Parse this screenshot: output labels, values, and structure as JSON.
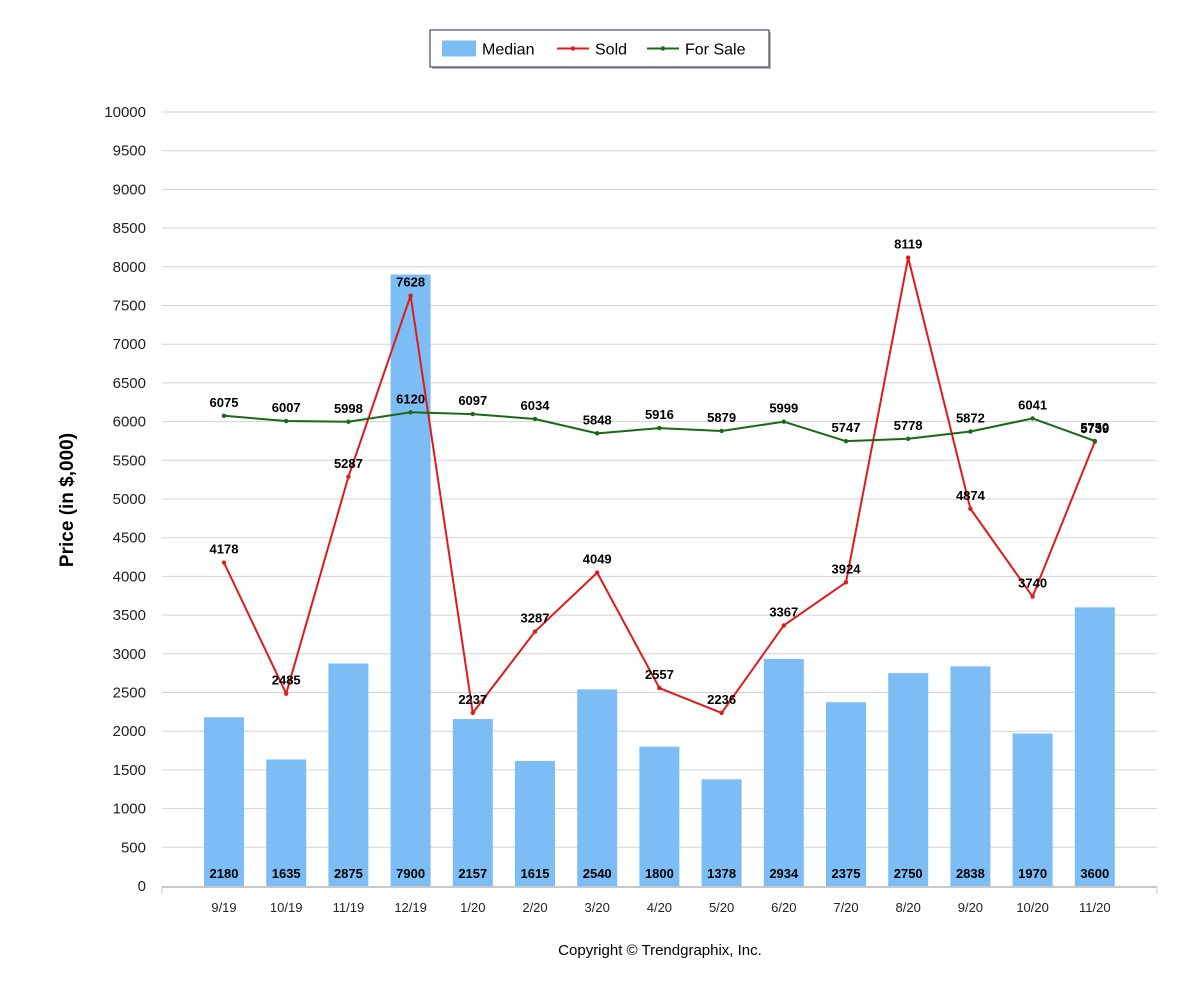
{
  "chart_data": {
    "type": "bar",
    "categories": [
      "9/19",
      "10/19",
      "11/19",
      "12/19",
      "1/20",
      "2/20",
      "3/20",
      "4/20",
      "5/20",
      "6/20",
      "7/20",
      "8/20",
      "9/20",
      "10/20",
      "11/20"
    ],
    "series": [
      {
        "name": "Median",
        "type": "bar",
        "color": "#7dbdf5",
        "values": [
          2180,
          1635,
          2875,
          7900,
          2157,
          1615,
          2540,
          1800,
          1378,
          2934,
          2375,
          2750,
          2838,
          1970,
          3600
        ]
      },
      {
        "name": "Sold",
        "type": "line",
        "color": "#e01a1a",
        "values": [
          4178,
          2485,
          5287,
          7628,
          2237,
          3287,
          4049,
          2557,
          2236,
          3367,
          3924,
          8119,
          4874,
          3740,
          5739
        ]
      },
      {
        "name": "For Sale",
        "type": "line",
        "color": "#176b17",
        "values": [
          6075,
          6007,
          5998,
          6120,
          6097,
          6034,
          5848,
          5916,
          5879,
          5999,
          5747,
          5778,
          5872,
          6041,
          5750
        ]
      }
    ],
    "ylabel": "Price (in $,000)",
    "xlabel": "",
    "ylim": [
      0,
      10000
    ],
    "ytick_step": 500,
    "grid": true,
    "legend_position": "top-center"
  },
  "footer": {
    "copyright": "Copyright © Trendgraphix, Inc."
  }
}
